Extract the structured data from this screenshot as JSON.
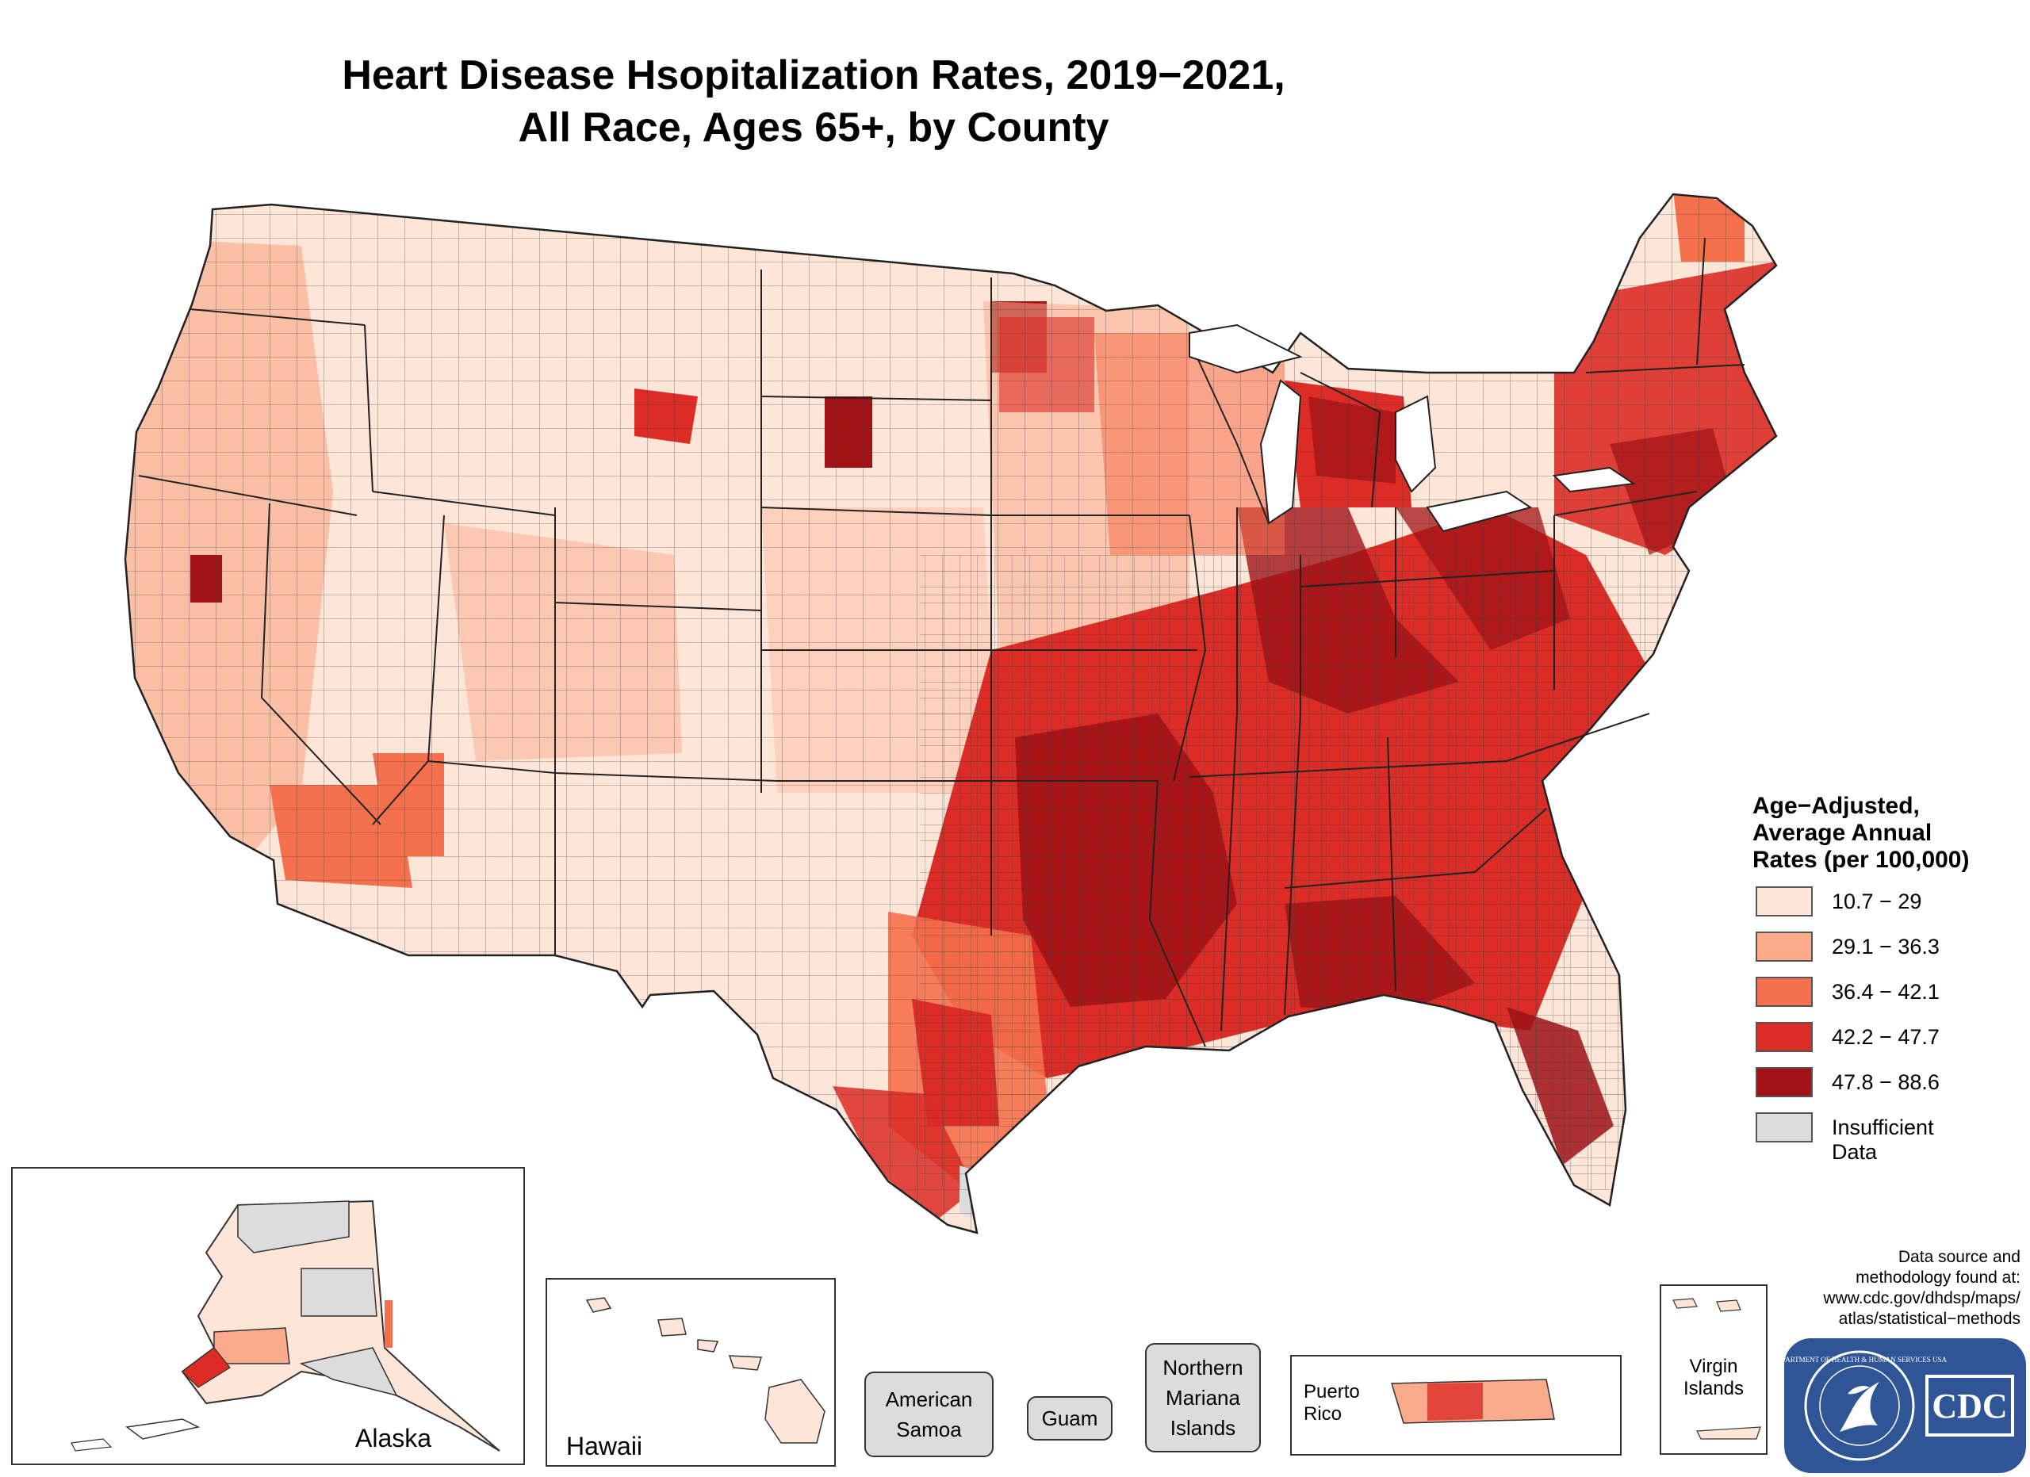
{
  "title": {
    "line1": "Heart Disease Hsopitalization Rates, 2019−2021,",
    "line2": "All Race, Ages 65+, by County"
  },
  "legend": {
    "title": [
      "Age−Adjusted,",
      "Average Annual",
      "Rates (per 100,000)"
    ],
    "classes": [
      {
        "label": "10.7 − 29",
        "color": "#fde5d8"
      },
      {
        "label": "29.1 − 36.3",
        "color": "#fbab8c"
      },
      {
        "label": "36.4 − 42.1",
        "color": "#f5704d"
      },
      {
        "label": "42.2 − 47.7",
        "color": "#dc2c25"
      },
      {
        "label": "47.8 − 88.6",
        "color": "#a11115"
      },
      {
        "label": "Insufficient Data",
        "color": "#dcdcdc"
      }
    ]
  },
  "insets": {
    "alaska": "Alaska",
    "hawaii": "Hawaii",
    "puerto_rico": [
      "Puerto",
      "Rico"
    ],
    "virgin_islands": [
      "Virgin",
      "Islands"
    ]
  },
  "territories": {
    "american_samoa": [
      "American",
      "Samoa"
    ],
    "guam": "Guam",
    "northern_mariana": [
      "Northern",
      "Mariana",
      "Islands"
    ]
  },
  "source_note": [
    "Data source and",
    "methodology found at:",
    "www.cdc.gov/dhdsp/maps/",
    "atlas/statistical−methods"
  ],
  "logo": {
    "text": "CDC",
    "ring_text": "DEPARTMENT OF HEALTH & HUMAN SERVICES USA"
  }
}
